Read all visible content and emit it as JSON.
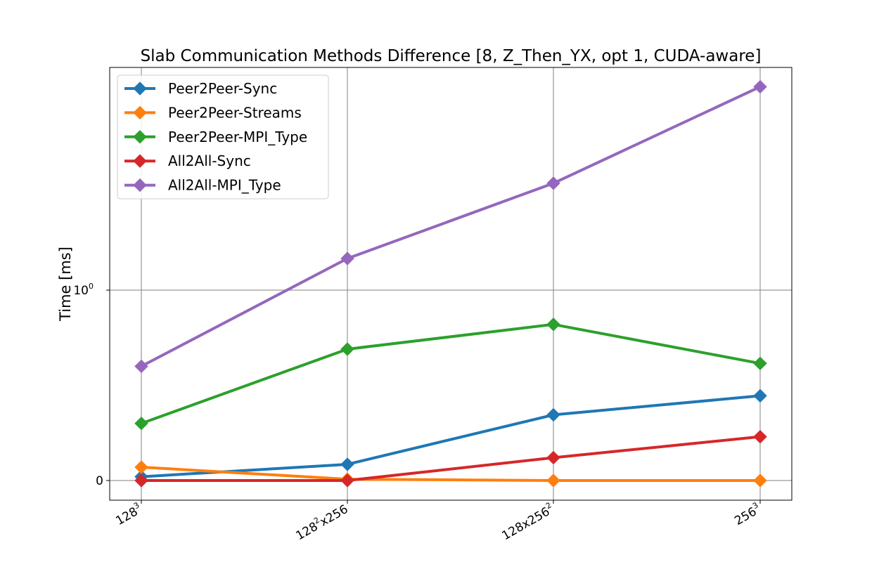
{
  "chart_data": {
    "type": "line",
    "title": "Slab Communication Methods Difference [8, Z_Then_YX, opt 1, CUDA-aware]",
    "xlabel": "",
    "ylabel": "Time [ms]",
    "y_scale": "symlog",
    "y_ticks": [
      {
        "value": 0,
        "label": "0"
      },
      {
        "value": 1,
        "label": "10",
        "sup": "0"
      }
    ],
    "categories": [
      {
        "base": "128",
        "sup": "3",
        "tail": ""
      },
      {
        "base": "128",
        "sup": "2",
        "tail": "x256"
      },
      {
        "base": "128x256",
        "sup": "2",
        "tail": ""
      },
      {
        "base": "256",
        "sup": "3",
        "tail": ""
      }
    ],
    "grid": true,
    "legend_position": "top-left",
    "marker": "diamond",
    "series": [
      {
        "name": "Peer2Peer-Sync",
        "color": "#1f77b4",
        "values": [
          0.02,
          0.085,
          0.345,
          0.445
        ]
      },
      {
        "name": "Peer2Peer-Streams",
        "color": "#ff7f0e",
        "values": [
          0.07,
          0.007,
          0.0,
          0.0
        ]
      },
      {
        "name": "Peer2Peer-MPI_Type",
        "color": "#2ca02c",
        "values": [
          0.3,
          0.69,
          0.82,
          0.615
        ]
      },
      {
        "name": "All2All-Sync",
        "color": "#d62728",
        "values": [
          0.0,
          0.0,
          0.12,
          0.23
        ]
      },
      {
        "name": "All2All-MPI_Type",
        "color": "#9467bd",
        "values": [
          0.6,
          1.18,
          1.75,
          2.9
        ]
      }
    ]
  }
}
